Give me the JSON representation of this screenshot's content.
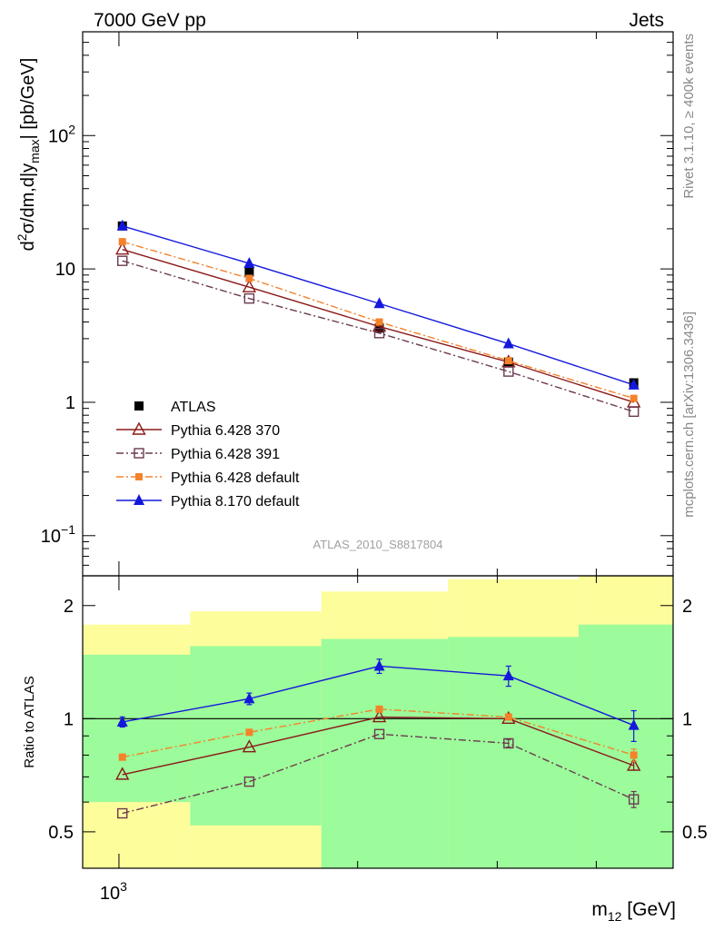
{
  "header": {
    "left": "7000 GeV pp",
    "right": "Jets"
  },
  "side_labels": {
    "top": "Rivet 3.1.10, ≥ 400k events",
    "bottom": "mcplots.cern.ch [arXiv:1306.3436]"
  },
  "analysis_id": "ATLAS_2010_S8817804",
  "colors": {
    "atlas": "#000000",
    "p370": "#8b1a1a",
    "p391": "#6b3a50",
    "p6def": "#f5822a",
    "p8def": "#1418dc",
    "band_inner": "#9cfb9a",
    "band_outer": "#fdfd9c"
  },
  "chart_data": [
    {
      "type": "scatter",
      "panel": "main",
      "ylabel": "d²σ/dm,d|y_max| [pb/GeV]",
      "ylabel_parts": {
        "d": "d",
        "sup": "2",
        "mid": "σ/dm,d|y",
        "sub": "max",
        "end": "| [pb/GeV]"
      },
      "yscale": "log",
      "ylim": [
        0.05,
        600
      ],
      "y_ticks": [
        {
          "v": 0.1,
          "base": "10",
          "exp": "−1"
        },
        {
          "v": 1,
          "base": "1",
          "exp": ""
        },
        {
          "v": 10,
          "base": "10",
          "exp": ""
        },
        {
          "v": 100,
          "base": "10",
          "exp": "2"
        }
      ],
      "x": [
        1010,
        1460,
        2130,
        3100,
        4460
      ],
      "legend_position": "bottom-left",
      "series": [
        {
          "key": "atlas",
          "name": "ATLAS",
          "marker": "square-filled",
          "line": "none",
          "values": [
            21,
            9.5,
            3.6,
            2.0,
            1.4
          ]
        },
        {
          "key": "p370",
          "name": "Pythia 6.428 370",
          "marker": "triangle-open",
          "line": "solid",
          "values": [
            14,
            7.3,
            3.7,
            2.0,
            1.0
          ]
        },
        {
          "key": "p391",
          "name": "Pythia 6.428 391",
          "marker": "square-open",
          "line": "dashdot",
          "values": [
            11.5,
            6.0,
            3.3,
            1.7,
            0.85
          ]
        },
        {
          "key": "p6def",
          "name": "Pythia 6.428 default",
          "marker": "square-filled-small",
          "line": "dashdot",
          "values": [
            16,
            8.5,
            4.0,
            2.05,
            1.07
          ]
        },
        {
          "key": "p8def",
          "name": "Pythia 8.170 default",
          "marker": "triangle-filled",
          "line": "solid",
          "values": [
            21,
            11.0,
            5.5,
            2.75,
            1.35
          ]
        }
      ]
    },
    {
      "type": "scatter",
      "panel": "ratio",
      "ylabel": "Ratio to ATLAS",
      "yscale": "log",
      "ylim": [
        0.4,
        2.4
      ],
      "y_ticks": [
        {
          "v": 0.5,
          "label": "0.5"
        },
        {
          "v": 1,
          "label": "1"
        },
        {
          "v": 2,
          "label": "2"
        }
      ],
      "xlabel": "m_12 [GeV]",
      "xlabel_parts": {
        "main": "m",
        "sub": "12",
        "end": " [GeV]"
      },
      "xscale": "log",
      "xlim": [
        900,
        5000
      ],
      "x_ticks": [
        {
          "v": 1000,
          "base": "10",
          "exp": "3"
        }
      ],
      "x": [
        1010,
        1460,
        2130,
        3100,
        4460
      ],
      "bins": [
        900,
        1230,
        1800,
        2600,
        3800,
        5000
      ],
      "band_inner": [
        [
          0.6,
          1.48
        ],
        [
          0.52,
          1.56
        ],
        [
          0.4,
          1.63
        ],
        [
          0.4,
          1.65
        ],
        [
          0.4,
          1.78
        ]
      ],
      "band_outer": [
        [
          0.4,
          1.78
        ],
        [
          0.4,
          1.93
        ],
        [
          0.4,
          2.18
        ],
        [
          0.4,
          2.35
        ],
        [
          0.4,
          2.4
        ]
      ],
      "series": [
        {
          "key": "p370",
          "name": "Pythia 6.428 370",
          "marker": "triangle-open",
          "line": "solid",
          "values": [
            0.71,
            0.84,
            1.01,
            1.0,
            0.75
          ],
          "errors": [
            0,
            0,
            0,
            0,
            0.02
          ]
        },
        {
          "key": "p391",
          "name": "Pythia 6.428 391",
          "marker": "square-open",
          "line": "dashdot",
          "values": [
            0.56,
            0.68,
            0.91,
            0.86,
            0.61
          ],
          "errors": [
            0,
            0,
            0,
            0.02,
            0.03
          ]
        },
        {
          "key": "p6def",
          "name": "Pythia 6.428 default",
          "marker": "square-filled-small",
          "line": "dashdot",
          "values": [
            0.79,
            0.92,
            1.06,
            1.01,
            0.8
          ],
          "errors": [
            0,
            0,
            0,
            0.01,
            0.03
          ]
        },
        {
          "key": "p8def",
          "name": "Pythia 8.170 default",
          "marker": "triangle-filled",
          "line": "solid",
          "values": [
            0.98,
            1.13,
            1.38,
            1.3,
            0.96
          ],
          "errors": [
            0.03,
            0.04,
            0.06,
            0.08,
            0.09
          ]
        }
      ]
    }
  ]
}
